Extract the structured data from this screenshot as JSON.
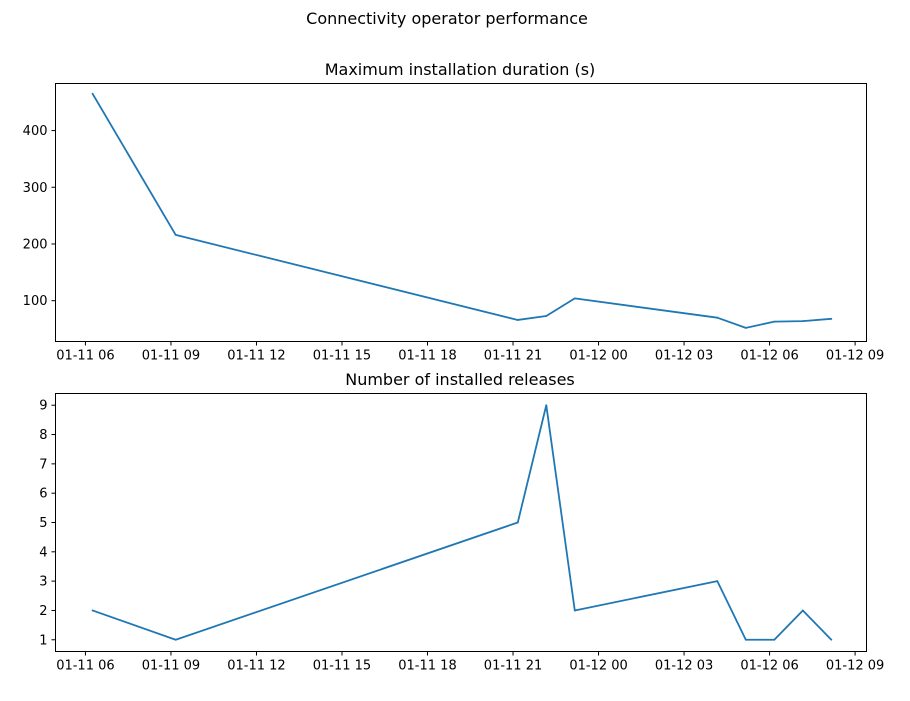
{
  "figure": {
    "suptitle": "Connectivity operator performance",
    "line_color": "#1f77b4"
  },
  "chart_data": [
    {
      "type": "line",
      "title": "Maximum installation duration (s)",
      "xlabel": "",
      "ylabel": "",
      "grid": false,
      "xlim": [
        "2024-01-11T04:57",
        "2024-01-12T09:24"
      ],
      "ylim": [
        28,
        483
      ],
      "x_tick_values": [
        "2024-01-11T06:00",
        "2024-01-11T09:00",
        "2024-01-11T12:00",
        "2024-01-11T15:00",
        "2024-01-11T18:00",
        "2024-01-11T21:00",
        "2024-01-12T00:00",
        "2024-01-12T03:00",
        "2024-01-12T06:00",
        "2024-01-12T09:00"
      ],
      "x_tick_labels": [
        "01-11 06",
        "01-11 09",
        "01-11 12",
        "01-11 15",
        "01-11 18",
        "01-11 21",
        "01-12 00",
        "01-12 03",
        "01-12 06",
        "01-12 09"
      ],
      "y_ticks": [
        100,
        200,
        300,
        400
      ],
      "y_tick_labels": [
        "100",
        "200",
        "300",
        "400"
      ],
      "series": [
        {
          "x": [
            "2024-01-11T06:15",
            "2024-01-11T09:10",
            "2024-01-11T21:10",
            "2024-01-11T22:10",
            "2024-01-11T23:10",
            "2024-01-12T04:10",
            "2024-01-12T05:10",
            "2024-01-12T06:10",
            "2024-01-12T07:10",
            "2024-01-12T08:10"
          ],
          "y": [
            465,
            216,
            66,
            73,
            104,
            70,
            52,
            63,
            64,
            68
          ]
        }
      ]
    },
    {
      "type": "line",
      "title": "Number of installed releases",
      "xlabel": "",
      "ylabel": "",
      "grid": false,
      "xlim": [
        "2024-01-11T04:57",
        "2024-01-12T09:24"
      ],
      "ylim": [
        0.6,
        9.4
      ],
      "x_tick_values": [
        "2024-01-11T06:00",
        "2024-01-11T09:00",
        "2024-01-11T12:00",
        "2024-01-11T15:00",
        "2024-01-11T18:00",
        "2024-01-11T21:00",
        "2024-01-12T00:00",
        "2024-01-12T03:00",
        "2024-01-12T06:00",
        "2024-01-12T09:00"
      ],
      "x_tick_labels": [
        "01-11 06",
        "01-11 09",
        "01-11 12",
        "01-11 15",
        "01-11 18",
        "01-11 21",
        "01-12 00",
        "01-12 03",
        "01-12 06",
        "01-12 09"
      ],
      "y_ticks": [
        1,
        2,
        3,
        4,
        5,
        6,
        7,
        8,
        9
      ],
      "y_tick_labels": [
        "1",
        "2",
        "3",
        "4",
        "5",
        "6",
        "7",
        "8",
        "9"
      ],
      "series": [
        {
          "x": [
            "2024-01-11T06:15",
            "2024-01-11T09:10",
            "2024-01-11T21:10",
            "2024-01-11T22:10",
            "2024-01-11T23:10",
            "2024-01-12T04:10",
            "2024-01-12T05:10",
            "2024-01-12T06:10",
            "2024-01-12T07:10",
            "2024-01-12T08:10"
          ],
          "y": [
            2,
            1,
            5,
            9,
            2,
            3,
            1,
            1,
            2,
            1
          ]
        }
      ]
    }
  ]
}
